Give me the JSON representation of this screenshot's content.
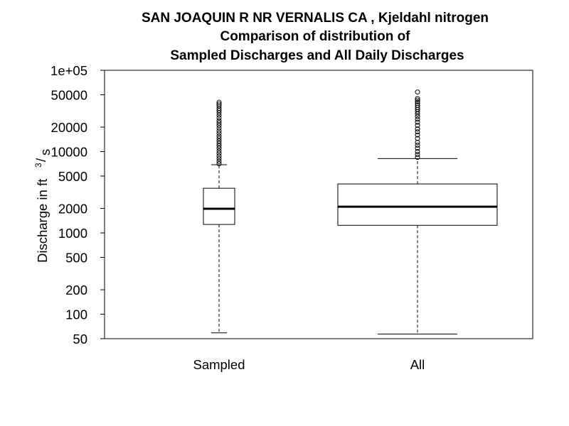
{
  "chart_data": {
    "type": "boxplot",
    "title": [
      "SAN JOAQUIN R NR VERNALIS CA , Kjeldahl nitrogen",
      "Comparison of distribution of",
      "Sampled Discharges and All Daily Discharges"
    ],
    "ylabel": {
      "main": "Discharge in ft",
      "superscript": "3",
      "slash": "/",
      "unit": "s"
    },
    "yscale": "log",
    "ylim": [
      50,
      100000
    ],
    "ytick_values": [
      50,
      100,
      200,
      500,
      1000,
      2000,
      5000,
      10000,
      20000,
      50000,
      100000
    ],
    "ytick_labels": [
      "50",
      "100",
      "200",
      "500",
      "1000",
      "2000",
      "5000",
      "10000",
      "20000",
      "50000",
      "1e+05"
    ],
    "categories": [
      "Sampled",
      "All"
    ],
    "boxes": [
      {
        "name": "Sampled",
        "whisker_low": 59,
        "q1": 1270,
        "median": 1980,
        "q3": 3540,
        "whisker_high": 6900,
        "outliers": [
          7100,
          7600,
          8200,
          8800,
          9500,
          10200,
          11000,
          11800,
          12600,
          13500,
          14500,
          15500,
          16800,
          18000,
          19500,
          21000,
          22500,
          24000,
          26000,
          28000,
          30000,
          32000,
          34000,
          36500,
          38500,
          40500
        ]
      },
      {
        "name": "All",
        "whisker_low": 57,
        "q1": 1240,
        "median": 2100,
        "q3": 4000,
        "whisker_high": 8200,
        "outliers": [
          8500,
          9200,
          10000,
          11000,
          12000,
          13000,
          14500,
          16000,
          17500,
          19000,
          21000,
          23000,
          25000,
          27000,
          29000,
          31000,
          33000,
          35000,
          37000,
          39000,
          41000,
          43000,
          45000,
          54000
        ]
      }
    ],
    "grid": false,
    "legend": "none",
    "colors": {
      "box_fill": "#ffffff",
      "line": "#000000"
    }
  }
}
